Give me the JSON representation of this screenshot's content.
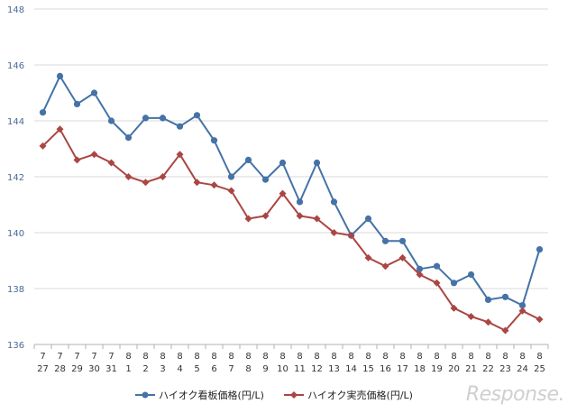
{
  "chart_data": {
    "type": "line",
    "categories": [
      [
        "7",
        "27"
      ],
      [
        "7",
        "28"
      ],
      [
        "7",
        "29"
      ],
      [
        "7",
        "30"
      ],
      [
        "7",
        "31"
      ],
      [
        "8",
        "1"
      ],
      [
        "8",
        "2"
      ],
      [
        "8",
        "3"
      ],
      [
        "8",
        "4"
      ],
      [
        "8",
        "5"
      ],
      [
        "8",
        "6"
      ],
      [
        "8",
        "7"
      ],
      [
        "8",
        "8"
      ],
      [
        "8",
        "9"
      ],
      [
        "8",
        "10"
      ],
      [
        "8",
        "11"
      ],
      [
        "8",
        "12"
      ],
      [
        "8",
        "13"
      ],
      [
        "8",
        "14"
      ],
      [
        "8",
        "15"
      ],
      [
        "8",
        "16"
      ],
      [
        "8",
        "17"
      ],
      [
        "8",
        "18"
      ],
      [
        "8",
        "19"
      ],
      [
        "8",
        "20"
      ],
      [
        "8",
        "21"
      ],
      [
        "8",
        "22"
      ],
      [
        "8",
        "23"
      ],
      [
        "8",
        "24"
      ],
      [
        "8",
        "25"
      ]
    ],
    "series": [
      {
        "name": "ハイオク看板価格(円/L)",
        "color": "#4572A7",
        "marker": "circle",
        "values": [
          144.3,
          145.6,
          144.6,
          145.0,
          144.0,
          143.4,
          144.1,
          144.1,
          143.8,
          144.2,
          143.3,
          142.0,
          142.6,
          141.9,
          142.5,
          141.1,
          142.5,
          141.1,
          139.9,
          140.5,
          139.7,
          139.7,
          138.7,
          138.8,
          138.2,
          138.5,
          137.6,
          137.7,
          137.4,
          139.4
        ]
      },
      {
        "name": "ハイオク実売価格(円/L)",
        "color": "#AA4643",
        "marker": "diamond",
        "values": [
          143.1,
          143.7,
          142.6,
          142.8,
          142.5,
          142.0,
          141.8,
          142.0,
          142.8,
          141.8,
          141.7,
          141.5,
          140.5,
          140.6,
          141.4,
          140.6,
          140.5,
          140.0,
          139.9,
          139.1,
          138.8,
          139.1,
          138.5,
          138.2,
          137.3,
          137.0,
          136.8,
          136.5,
          137.2,
          136.9
        ]
      }
    ],
    "ylim": [
      136,
      148
    ],
    "yticks": [
      "136",
      "138",
      "140",
      "142",
      "144",
      "146",
      "148"
    ],
    "grid": true,
    "legend": "bottom"
  },
  "watermark": "Response."
}
